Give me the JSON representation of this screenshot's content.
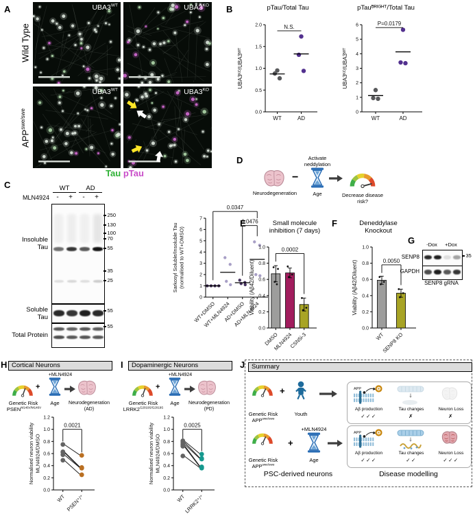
{
  "panelA": {
    "letter": "A",
    "rows": [
      {
        "label": "Wild Type",
        "sup": ""
      },
      {
        "label": "APP",
        "sup": "swe/swe"
      }
    ],
    "tiles": [
      {
        "gene": "UBA3",
        "sup": "WT"
      },
      {
        "gene": "UBA3",
        "sup": "KO"
      },
      {
        "gene": "UBA3",
        "sup": "WT"
      },
      {
        "gene": "UBA3",
        "sup": "KO"
      }
    ],
    "legend": {
      "tau": "Tau",
      "ptau": "pTau",
      "tau_color": "#2eb135",
      "ptau_color": "#c84cc8"
    }
  },
  "panelB": {
    "letter": "B"
  },
  "panelC": {
    "letter": "C",
    "blot": {
      "groups": [
        "WT",
        "AD"
      ],
      "drug": "MLN4924",
      "signs": [
        "-",
        "+",
        "-",
        "+"
      ],
      "row_labels": [
        "Insoluble",
        "Tau",
        "Soluble",
        "Tau",
        "Total Protein"
      ],
      "mw_main": [
        "250",
        "130",
        "100",
        "70",
        "55",
        "35",
        "25"
      ],
      "mw_sol": [
        "55"
      ],
      "mw_tot": [
        "55"
      ]
    }
  },
  "panelD": {
    "letter": "D",
    "neuro": "Neurodegeneration",
    "minus": "−",
    "activate": "Activate\nneddylation",
    "age": "Age",
    "risk": "Decrease disease\nrisk?"
  },
  "panelE": {
    "letter": "E"
  },
  "panelF": {
    "letter": "F"
  },
  "panelG": {
    "letter": "G",
    "cols": [
      "-Dox",
      "+Dox"
    ],
    "rows": [
      "SENP8",
      "GAPDH"
    ],
    "mw": [
      "35"
    ],
    "caption": "SENP8 gRNA"
  },
  "panelH": {
    "letter": "H",
    "header": "Cortical Neurons",
    "risk": "Genetic Risk",
    "gene": "PSEN",
    "gene_sup": "M146V/M146V",
    "plus": "+",
    "drug": "+MLN4924",
    "age": "Age",
    "outcome": "Neurodegeneration",
    "outcome2": "(AD)"
  },
  "panelI": {
    "letter": "I",
    "header": "Dopaminergic Neurons",
    "risk": "Genetic Risk",
    "gene": "LRRK2",
    "gene_sup": "G2019S/G2019S",
    "plus": "+",
    "drug": "+MLN4924",
    "age": "Age",
    "outcome": "Neurodegeneration",
    "outcome2": "(PD)"
  },
  "panelJ": {
    "letter": "J",
    "header": "Summary",
    "app_label": "APP",
    "row1": {
      "risk": "Genetic Risk",
      "gene": "APP",
      "sup": "swe/swe",
      "plus": "+",
      "cond": "Youth",
      "results": [
        {
          "label": "Aβ production",
          "marks": "✓✓✓"
        },
        {
          "label": "Tau changes",
          "marks": "✗"
        },
        {
          "label": "Neuron Loss",
          "marks": "✗"
        }
      ]
    },
    "row2": {
      "risk": "Genetic Risk",
      "gene": "APP",
      "sup": "swe/swe",
      "plus": "+",
      "drug": "+MLN4924",
      "cond": "Age",
      "results": [
        {
          "label": "Aβ production",
          "marks": "✓✓✓"
        },
        {
          "label": "Tau changes",
          "marks": "✓✓"
        },
        {
          "label": "Neuron Loss",
          "marks": "✓✓✓"
        }
      ]
    },
    "footer_left": "PSC-derived neurons",
    "footer_right": "Disease modelling"
  },
  "chart_data": [
    {
      "type": "scatter",
      "title": "pTau/Total Tau",
      "ylabel": [
        "UBA3ᴷᴼ/UBA3ᵂᵀ"
      ],
      "categories": [
        "WT",
        "AD"
      ],
      "series": [
        {
          "name": "WT",
          "color": "#58595b",
          "values": [
            0.95,
            0.88,
            0.77
          ],
          "mean": 0.87
        },
        {
          "name": "AD",
          "color": "#53318f",
          "values": [
            1.73,
            1.31,
            0.94
          ],
          "mean": 1.33
        }
      ],
      "ylim": [
        0,
        2
      ],
      "yticks": [
        0,
        0.5,
        1,
        1.5,
        2
      ],
      "ytick_labels": [
        "0.0",
        "0.5",
        "1.0",
        "1.5",
        "2.0"
      ],
      "sig": [
        {
          "x1": 0,
          "x2": 1,
          "y": 1.86,
          "label": "N.S."
        }
      ]
    },
    {
      "type": "scatter",
      "title": "pTauᴮᴿᴵᴳᴴᵀ/Total Tau",
      "ylabel": [
        "UBA3ᴷᴼ/UBA3ᵂᵀ"
      ],
      "categories": [
        "WT",
        "AD"
      ],
      "series": [
        {
          "name": "WT",
          "color": "#58595b",
          "values": [
            1.5,
            0.95,
            0.9
          ],
          "mean": 1.12
        },
        {
          "name": "AD",
          "color": "#53318f",
          "values": [
            5.65,
            3.4,
            3.35
          ],
          "mean": 4.13
        }
      ],
      "ylim": [
        0,
        6
      ],
      "yticks": [
        0,
        1,
        2,
        3,
        4,
        5,
        6
      ],
      "ytick_labels": [
        "0",
        "1",
        "2",
        "3",
        "4",
        "5",
        "6"
      ],
      "sig": [
        {
          "x1": 0,
          "x2": 1,
          "y": 5.8,
          "label": "P=0.0179"
        }
      ]
    },
    {
      "type": "scatter",
      "title": "",
      "ylabel": [
        "Sarkosyl Soluble/Insoluble Tau",
        "(normalised to WT+DMSO)"
      ],
      "categories": [
        "WT+DMSO",
        "WT+MLN4924",
        "AD+DMSO",
        "AD+MLN4924"
      ],
      "series": [
        {
          "name": "WT+DMSO",
          "color": "#46325f",
          "values": [
            1,
            1,
            1,
            1
          ],
          "mean": 1.0
        },
        {
          "name": "WT+MLN4924",
          "color": "#a89fc6",
          "values": [
            3.5,
            2.9,
            1.4,
            1.1
          ],
          "mean": 2.2
        },
        {
          "name": "AD+DMSO",
          "color": "#46325f",
          "values": [
            1.5,
            1.3,
            1.2,
            1.1
          ],
          "mean": 1.28
        },
        {
          "name": "AD+MLN4924",
          "color": "#a89fc6",
          "values": [
            4.9,
            4.6,
            2.0,
            1.9
          ],
          "mean": 3.35
        }
      ],
      "ylim": [
        0,
        7
      ],
      "yticks": [
        0,
        1,
        2,
        3,
        4,
        5,
        6,
        7
      ],
      "ytick_labels": [
        "0",
        "1",
        "2",
        "3",
        "4",
        "5",
        "6",
        "7"
      ],
      "sig": [
        {
          "x1": 0,
          "x2": 3,
          "y": 7.6,
          "label": "0.0347",
          "d1": 1.5,
          "d2": 7.0
        },
        {
          "x1": 2,
          "x2": 3,
          "y": 6.35,
          "label": "0.0476",
          "d1": 1.9,
          "d2": 5.4
        }
      ],
      "xrot": 45
    },
    {
      "type": "bar",
      "title": "Small molecule\ninhibition (7 days)",
      "ylabel": [
        "Viability (Aβ42/Diluent)"
      ],
      "categories": [
        "DMSO",
        "MLN4924",
        "CSN5i-3"
      ],
      "values": [
        0.67,
        0.68,
        0.29
      ],
      "errors": [
        0.1,
        0.06,
        0.08
      ],
      "points": [
        [
          0.75,
          0.73,
          0.57,
          0.54
        ],
        [
          0.76,
          0.66,
          0.63
        ],
        [
          0.37,
          0.25,
          0.22
        ]
      ],
      "colors": [
        "#9d9d9c",
        "#a21d5e",
        "#a8a425"
      ],
      "ylim": [
        0,
        1
      ],
      "yticks": [
        0,
        0.2,
        0.4,
        0.6,
        0.8,
        1
      ],
      "ytick_labels": [
        "0.0",
        "0.2",
        "0.4",
        "0.6",
        "0.8",
        "1.0"
      ],
      "sig": [
        {
          "x1": 0,
          "x2": 2,
          "y": 0.92,
          "label": "0.0002",
          "d1": 0.82,
          "d2": 0.42
        }
      ],
      "xrot": 45
    },
    {
      "type": "bar",
      "title": "Deneddylase\nKnockout",
      "ylabel": [
        "Viability (Aβ42/Diluent)"
      ],
      "categories": [
        "WT",
        "SENP8 KO"
      ],
      "values": [
        0.59,
        0.43
      ],
      "errors": [
        0.05,
        0.05
      ],
      "points": [
        [
          0.63,
          0.57,
          0.54
        ],
        [
          0.48,
          0.43,
          0.38
        ]
      ],
      "colors": [
        "#9d9d9c",
        "#a8a425"
      ],
      "ylim": [
        0,
        1
      ],
      "yticks": [
        0,
        0.2,
        0.4,
        0.6,
        0.8,
        1
      ],
      "ytick_labels": [
        "0.0",
        "0.2",
        "0.4",
        "0.6",
        "0.8",
        "1.0"
      ],
      "sig": [
        {
          "x1": 0,
          "x2": 1,
          "y": 0.78,
          "label": "0.0050",
          "d1": 0.68,
          "d2": 0.53
        }
      ],
      "xrot": 45
    },
    {
      "type": "paired",
      "title": "",
      "ylabel": [
        "Normalised neuron viability",
        "MLN4924/DMSO"
      ],
      "categories": [
        "WT",
        "PSEN⁺/⁺"
      ],
      "colors": [
        "#636363",
        "#b96f22"
      ],
      "pairs": [
        [
          0.75,
          0.57
        ],
        [
          0.63,
          0.37
        ],
        [
          0.62,
          0.36
        ],
        [
          0.58,
          0.36
        ],
        [
          0.49,
          0.25
        ]
      ],
      "ylim": [
        0,
        1.2
      ],
      "yticks": [
        0,
        0.2,
        0.4,
        0.6,
        0.8,
        1,
        1.2
      ],
      "ytick_labels": [
        "0.0",
        "0.2",
        "0.4",
        "0.6",
        "0.8",
        "1.0",
        "1.2"
      ],
      "sig": [
        {
          "x1": 0,
          "x2": 1,
          "y": 1.0,
          "label": "0.0021",
          "d1": 0.8,
          "d2": 0.62
        }
      ],
      "xrot": 45
    },
    {
      "type": "paired",
      "title": "",
      "ylabel": [
        "Normalised neuron viability",
        "MLN4924/DMSO"
      ],
      "categories": [
        "WT",
        "LRRK2⁺/⁺"
      ],
      "colors": [
        "#636363",
        "#16988e"
      ],
      "pairs": [
        [
          0.81,
          0.59
        ],
        [
          0.79,
          0.52
        ],
        [
          0.76,
          0.51
        ],
        [
          0.74,
          0.38
        ],
        [
          0.72,
          0.37
        ],
        [
          0.56,
          0.36
        ]
      ],
      "ylim": [
        0,
        1.2
      ],
      "yticks": [
        0,
        0.2,
        0.4,
        0.6,
        0.8,
        1,
        1.2
      ],
      "ytick_labels": [
        "0.0",
        "0.2",
        "0.4",
        "0.6",
        "0.8",
        "1.0",
        "1.2"
      ],
      "sig": [
        {
          "x1": 0,
          "x2": 1,
          "y": 1.0,
          "label": "0.0025",
          "d1": 0.85,
          "d2": 0.64
        }
      ],
      "xrot": 45
    }
  ]
}
